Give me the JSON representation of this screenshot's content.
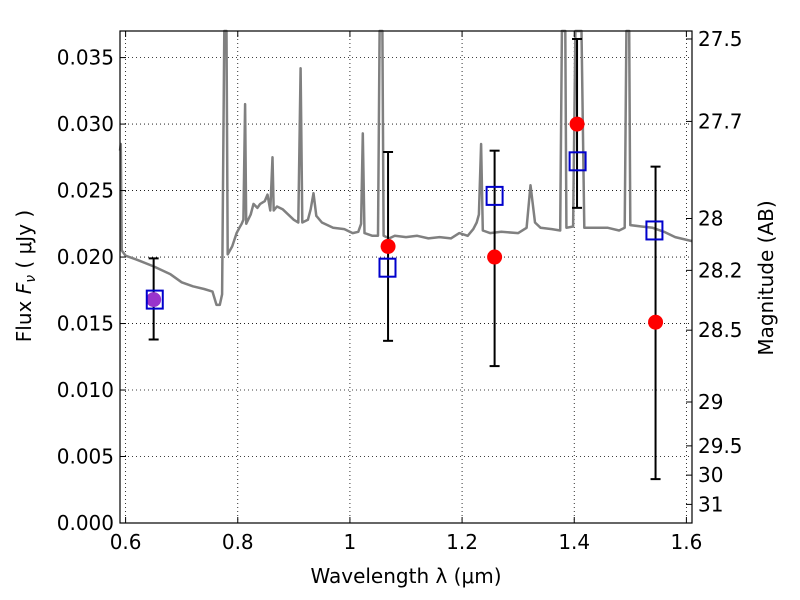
{
  "chart_data": {
    "type": "scatter",
    "xlabel": "Wavelength  λ (μm)",
    "ylabel_parts": [
      "Flux  ",
      "F",
      "ν",
      "  ( μJy )"
    ],
    "y2label": "Magnitude (AB)",
    "xlim": [
      0.59,
      1.61
    ],
    "ylim": [
      0.0,
      0.037
    ],
    "grid": true,
    "x_ticks": [
      {
        "value": 0.6,
        "label": "0.6"
      },
      {
        "value": 0.8,
        "label": "0.8"
      },
      {
        "value": 1.0,
        "label": "1"
      },
      {
        "value": 1.2,
        "label": "1.2"
      },
      {
        "value": 1.4,
        "label": "1.4"
      },
      {
        "value": 1.6,
        "label": "1.6"
      }
    ],
    "y_ticks": [
      {
        "value": 0.0,
        "label": "0.000"
      },
      {
        "value": 0.005,
        "label": "0.005"
      },
      {
        "value": 0.01,
        "label": "0.010"
      },
      {
        "value": 0.015,
        "label": "0.015"
      },
      {
        "value": 0.02,
        "label": "0.020"
      },
      {
        "value": 0.025,
        "label": "0.025"
      },
      {
        "value": 0.03,
        "label": "0.030"
      },
      {
        "value": 0.035,
        "label": "0.035"
      }
    ],
    "y2_ticks": [
      {
        "flux": 0.0364,
        "label": "27.5"
      },
      {
        "flux": 0.0302,
        "label": "27.7"
      },
      {
        "flux": 0.0229,
        "label": "28"
      },
      {
        "flux": 0.019,
        "label": "28.2"
      },
      {
        "flux": 0.0145,
        "label": "28.5"
      },
      {
        "flux": 0.0091,
        "label": "29"
      },
      {
        "flux": 0.0058,
        "label": "29.5"
      },
      {
        "flux": 0.0036,
        "label": "30"
      },
      {
        "flux": 0.0014,
        "label": "31"
      }
    ],
    "observed": {
      "color": "#ff0000",
      "points": [
        {
          "x": 0.65,
          "y": 0.0168,
          "err_low": 0.0138,
          "err_high": 0.0199
        },
        {
          "x": 1.068,
          "y": 0.0208,
          "err_low": 0.0137,
          "err_high": 0.0279
        },
        {
          "x": 1.258,
          "y": 0.02,
          "err_low": 0.0118,
          "err_high": 0.028
        },
        {
          "x": 1.405,
          "y": 0.03,
          "err_low": 0.0237,
          "err_high": 0.0364
        },
        {
          "x": 1.545,
          "y": 0.0151,
          "err_low": 0.0033,
          "err_high": 0.0268
        }
      ]
    },
    "model_points": {
      "color": "#0000cc",
      "points": [
        {
          "x": 0.652,
          "y": 0.0168
        },
        {
          "x": 1.067,
          "y": 0.0192
        },
        {
          "x": 1.258,
          "y": 0.0246
        },
        {
          "x": 1.406,
          "y": 0.0272
        },
        {
          "x": 1.543,
          "y": 0.022
        }
      ]
    },
    "overlap_color": "#9933cc",
    "spectrum": {
      "color": "#808080",
      "points": [
        [
          0.59,
          0.028
        ],
        [
          0.5915,
          0.0285
        ],
        [
          0.593,
          0.0205
        ],
        [
          0.6,
          0.0201
        ],
        [
          0.62,
          0.0198
        ],
        [
          0.65,
          0.0193
        ],
        [
          0.68,
          0.0187
        ],
        [
          0.7,
          0.0181
        ],
        [
          0.72,
          0.0178
        ],
        [
          0.74,
          0.0176
        ],
        [
          0.755,
          0.0174
        ],
        [
          0.762,
          0.0164
        ],
        [
          0.768,
          0.0164
        ],
        [
          0.772,
          0.0172
        ],
        [
          0.776,
          0.037
        ],
        [
          0.78,
          0.037
        ],
        [
          0.782,
          0.0202
        ],
        [
          0.79,
          0.0208
        ],
        [
          0.798,
          0.0218
        ],
        [
          0.803,
          0.0222
        ],
        [
          0.807,
          0.0225
        ],
        [
          0.81,
          0.0228
        ],
        [
          0.813,
          0.0315
        ],
        [
          0.815,
          0.0225
        ],
        [
          0.823,
          0.0232
        ],
        [
          0.828,
          0.024
        ],
        [
          0.835,
          0.0237
        ],
        [
          0.84,
          0.024
        ],
        [
          0.848,
          0.0242
        ],
        [
          0.853,
          0.0247
        ],
        [
          0.858,
          0.0235
        ],
        [
          0.862,
          0.0275
        ],
        [
          0.864,
          0.0235
        ],
        [
          0.87,
          0.0238
        ],
        [
          0.88,
          0.0236
        ],
        [
          0.9,
          0.0228
        ],
        [
          0.908,
          0.0226
        ],
        [
          0.912,
          0.0342
        ],
        [
          0.915,
          0.0226
        ],
        [
          0.925,
          0.0228
        ],
        [
          0.93,
          0.0236
        ],
        [
          0.935,
          0.0248
        ],
        [
          0.94,
          0.0231
        ],
        [
          0.95,
          0.0226
        ],
        [
          0.97,
          0.0222
        ],
        [
          0.99,
          0.0221
        ],
        [
          1.005,
          0.0218
        ],
        [
          1.015,
          0.0219
        ],
        [
          1.02,
          0.0225
        ],
        [
          1.023,
          0.0293
        ],
        [
          1.026,
          0.0218
        ],
        [
          1.04,
          0.0216
        ],
        [
          1.05,
          0.0216
        ],
        [
          1.053,
          0.037
        ],
        [
          1.058,
          0.037
        ],
        [
          1.06,
          0.0216
        ],
        [
          1.07,
          0.0214
        ],
        [
          1.08,
          0.0216
        ],
        [
          1.1,
          0.0215
        ],
        [
          1.12,
          0.0216
        ],
        [
          1.14,
          0.0214
        ],
        [
          1.16,
          0.0215
        ],
        [
          1.18,
          0.0214
        ],
        [
          1.195,
          0.0218
        ],
        [
          1.21,
          0.0216
        ],
        [
          1.22,
          0.0221
        ],
        [
          1.226,
          0.0226
        ],
        [
          1.23,
          0.0232
        ],
        [
          1.234,
          0.0285
        ],
        [
          1.237,
          0.022
        ],
        [
          1.25,
          0.0218
        ],
        [
          1.27,
          0.0219
        ],
        [
          1.3,
          0.0218
        ],
        [
          1.315,
          0.0222
        ],
        [
          1.322,
          0.0254
        ],
        [
          1.33,
          0.0226
        ],
        [
          1.34,
          0.0222
        ],
        [
          1.36,
          0.0221
        ],
        [
          1.375,
          0.022
        ],
        [
          1.378,
          0.037
        ],
        [
          1.384,
          0.037
        ],
        [
          1.386,
          0.0222
        ],
        [
          1.398,
          0.0223
        ],
        [
          1.402,
          0.037
        ],
        [
          1.413,
          0.037
        ],
        [
          1.418,
          0.0222
        ],
        [
          1.46,
          0.0222
        ],
        [
          1.48,
          0.022
        ],
        [
          1.49,
          0.0222
        ],
        [
          1.493,
          0.037
        ],
        [
          1.498,
          0.037
        ],
        [
          1.5,
          0.0224
        ],
        [
          1.52,
          0.0223
        ],
        [
          1.54,
          0.0222
        ],
        [
          1.56,
          0.0219
        ],
        [
          1.58,
          0.0215
        ],
        [
          1.61,
          0.0212
        ]
      ]
    }
  }
}
